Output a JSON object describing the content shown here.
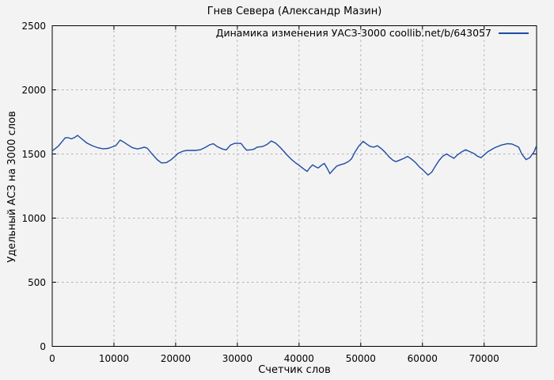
{
  "colors": {
    "background": "#f3f3f3",
    "axis": "#000000",
    "grid": "#b0b0b0",
    "series_line": "#1f4ba5",
    "text": "#000000"
  },
  "chart_data": {
    "type": "line",
    "title": "Гнев Севера (Александр Мазин)",
    "xlabel": "Счетчик слов",
    "ylabel": "Удельный АСЗ на 3000 слов",
    "xlim": [
      0,
      78500
    ],
    "ylim": [
      0,
      2500
    ],
    "xticks": [
      0,
      10000,
      20000,
      30000,
      40000,
      50000,
      60000,
      70000
    ],
    "yticks": [
      0,
      500,
      1000,
      1500,
      2000,
      2500
    ],
    "grid": true,
    "legend_position": "top-right-inside",
    "series": [
      {
        "name": "Динамика изменения УАСЗ-3000 coollib.net/b/643057",
        "color": "#1f4ba5",
        "points": [
          [
            0,
            1525
          ],
          [
            500,
            1542
          ],
          [
            1000,
            1562
          ],
          [
            1600,
            1597
          ],
          [
            2100,
            1626
          ],
          [
            2600,
            1627
          ],
          [
            3100,
            1618
          ],
          [
            3600,
            1628
          ],
          [
            4100,
            1645
          ],
          [
            4800,
            1617
          ],
          [
            5600,
            1586
          ],
          [
            6500,
            1564
          ],
          [
            7400,
            1549
          ],
          [
            8200,
            1541
          ],
          [
            9000,
            1543
          ],
          [
            9700,
            1555
          ],
          [
            10300,
            1565
          ],
          [
            11000,
            1608
          ],
          [
            11500,
            1595
          ],
          [
            12100,
            1576
          ],
          [
            13000,
            1549
          ],
          [
            13800,
            1539
          ],
          [
            14500,
            1547
          ],
          [
            14900,
            1553
          ],
          [
            15400,
            1545
          ],
          [
            16100,
            1505
          ],
          [
            17000,
            1456
          ],
          [
            17700,
            1430
          ],
          [
            18500,
            1433
          ],
          [
            19200,
            1453
          ],
          [
            19800,
            1477
          ],
          [
            20400,
            1505
          ],
          [
            21200,
            1522
          ],
          [
            21800,
            1528
          ],
          [
            23200,
            1528
          ],
          [
            24000,
            1533
          ],
          [
            24700,
            1549
          ],
          [
            25500,
            1571
          ],
          [
            26100,
            1580
          ],
          [
            26800,
            1556
          ],
          [
            27600,
            1538
          ],
          [
            28200,
            1532
          ],
          [
            28900,
            1570
          ],
          [
            29600,
            1584
          ],
          [
            30600,
            1582
          ],
          [
            31100,
            1550
          ],
          [
            31500,
            1530
          ],
          [
            32100,
            1532
          ],
          [
            32700,
            1537
          ],
          [
            33200,
            1553
          ],
          [
            34100,
            1558
          ],
          [
            34800,
            1574
          ],
          [
            35500,
            1601
          ],
          [
            36200,
            1585
          ],
          [
            36900,
            1553
          ],
          [
            37500,
            1522
          ],
          [
            38100,
            1490
          ],
          [
            38800,
            1456
          ],
          [
            39400,
            1432
          ],
          [
            40100,
            1408
          ],
          [
            40700,
            1385
          ],
          [
            41300,
            1364
          ],
          [
            41800,
            1395
          ],
          [
            42200,
            1415
          ],
          [
            42700,
            1400
          ],
          [
            43100,
            1391
          ],
          [
            43700,
            1415
          ],
          [
            44100,
            1426
          ],
          [
            44600,
            1385
          ],
          [
            45000,
            1347
          ],
          [
            45500,
            1374
          ],
          [
            46100,
            1405
          ],
          [
            46700,
            1416
          ],
          [
            47300,
            1424
          ],
          [
            48000,
            1441
          ],
          [
            48500,
            1462
          ],
          [
            49100,
            1518
          ],
          [
            49700,
            1563
          ],
          [
            50400,
            1598
          ],
          [
            51000,
            1576
          ],
          [
            51500,
            1560
          ],
          [
            52100,
            1553
          ],
          [
            52700,
            1564
          ],
          [
            53400,
            1539
          ],
          [
            54000,
            1511
          ],
          [
            54600,
            1477
          ],
          [
            55200,
            1452
          ],
          [
            55700,
            1440
          ],
          [
            56300,
            1452
          ],
          [
            57000,
            1466
          ],
          [
            57600,
            1481
          ],
          [
            58200,
            1461
          ],
          [
            58900,
            1432
          ],
          [
            59500,
            1399
          ],
          [
            60100,
            1374
          ],
          [
            60900,
            1336
          ],
          [
            61500,
            1358
          ],
          [
            62100,
            1405
          ],
          [
            62700,
            1450
          ],
          [
            63300,
            1483
          ],
          [
            63900,
            1500
          ],
          [
            64500,
            1483
          ],
          [
            65100,
            1466
          ],
          [
            65700,
            1494
          ],
          [
            66400,
            1518
          ],
          [
            67000,
            1533
          ],
          [
            67700,
            1518
          ],
          [
            68300,
            1505
          ],
          [
            68900,
            1483
          ],
          [
            69500,
            1471
          ],
          [
            70600,
            1518
          ],
          [
            71700,
            1549
          ],
          [
            72800,
            1570
          ],
          [
            73800,
            1580
          ],
          [
            74500,
            1578
          ],
          [
            75100,
            1565
          ],
          [
            75600,
            1553
          ],
          [
            76100,
            1500
          ],
          [
            76800,
            1456
          ],
          [
            77400,
            1471
          ],
          [
            78100,
            1518
          ],
          [
            78450,
            1560
          ]
        ]
      }
    ]
  }
}
